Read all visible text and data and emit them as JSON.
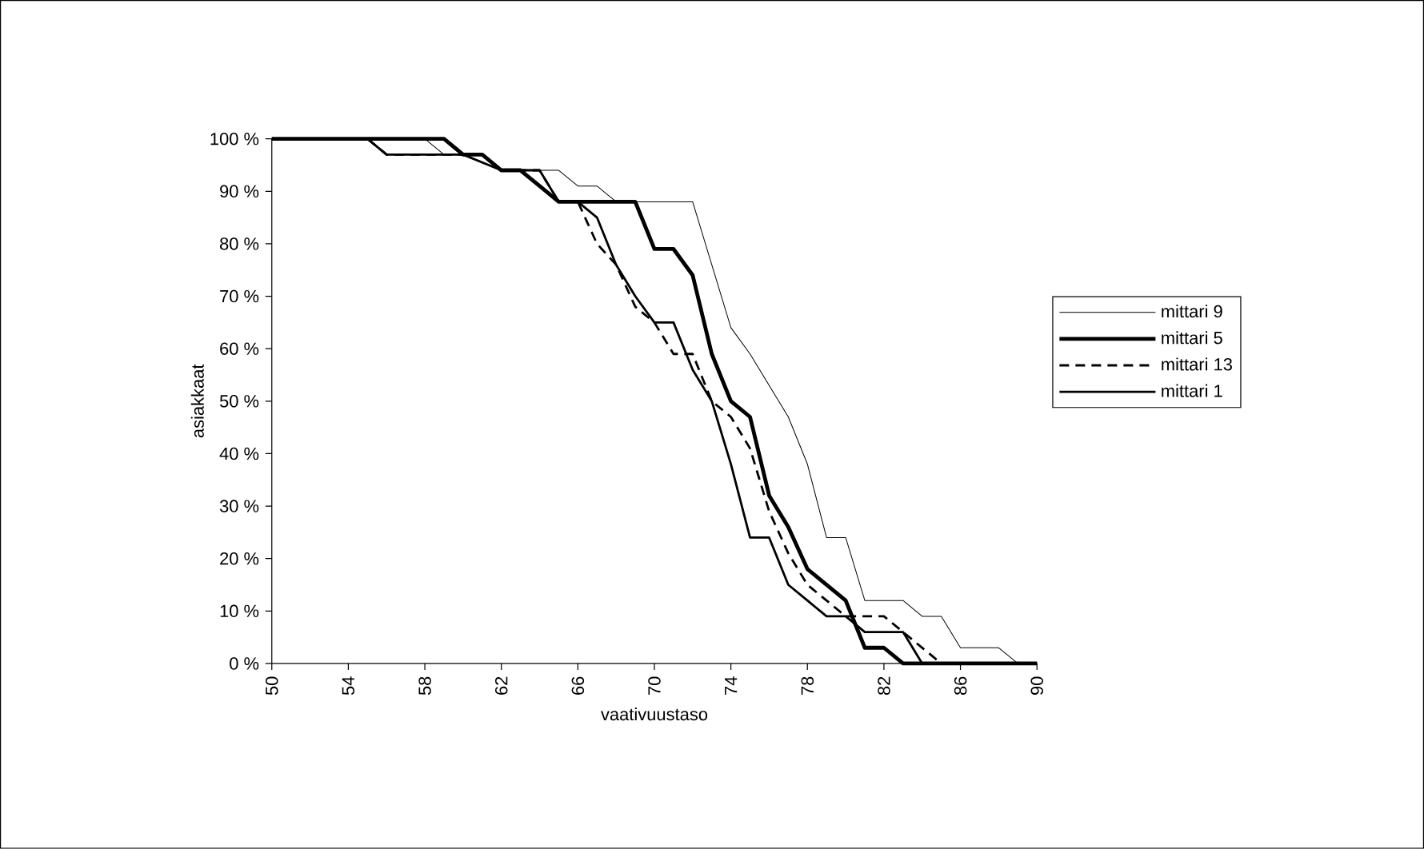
{
  "chart_data": {
    "type": "line",
    "xlabel": "vaativuustaso",
    "ylabel": "asiakkaat",
    "xlim": [
      50,
      90
    ],
    "xticks": [
      50,
      54,
      58,
      62,
      66,
      70,
      74,
      78,
      82,
      86,
      90
    ],
    "ylim": [
      0,
      100
    ],
    "yticks": [
      {
        "value": 0,
        "label": "0 %"
      },
      {
        "value": 10,
        "label": "10 %"
      },
      {
        "value": 20,
        "label": "20 %"
      },
      {
        "value": 30,
        "label": "30 %"
      },
      {
        "value": 40,
        "label": "40 %"
      },
      {
        "value": 50,
        "label": "50 %"
      },
      {
        "value": 60,
        "label": "60 %"
      },
      {
        "value": 70,
        "label": "70 %"
      },
      {
        "value": 80,
        "label": "80 %"
      },
      {
        "value": 90,
        "label": "90 %"
      },
      {
        "value": 100,
        "label": "100 %"
      }
    ],
    "grid": false,
    "legend": "right",
    "marker": "none",
    "series": [
      {
        "name": "mittari 9",
        "color": "#000000",
        "line_style": "solid",
        "x": [
          50,
          58,
          59,
          61,
          62,
          64,
          65,
          66,
          67,
          68,
          72,
          73,
          74,
          75,
          76,
          77,
          78,
          79,
          80,
          81,
          83,
          84,
          85,
          86,
          88,
          89,
          90
        ],
        "values": [
          100,
          100,
          97,
          97,
          94,
          94,
          94,
          91,
          91,
          88,
          88,
          76,
          64,
          59,
          53,
          47,
          38,
          24,
          24,
          12,
          12,
          9,
          9,
          3,
          3,
          0,
          0
        ]
      },
      {
        "name": "mittari 5",
        "color": "#000000",
        "line_style": "solid",
        "x": [
          50,
          59,
          60,
          61,
          62,
          63,
          64,
          65,
          69,
          70,
          71,
          72,
          73,
          74,
          75,
          76,
          77,
          78,
          79,
          80,
          81,
          82,
          83,
          90
        ],
        "values": [
          100,
          100,
          97,
          97,
          94,
          94,
          91,
          88,
          88,
          79,
          79,
          74,
          59,
          50,
          47,
          32,
          26,
          18,
          15,
          12,
          3,
          3,
          0,
          0
        ]
      },
      {
        "name": "mittari 13",
        "color": "#000000",
        "line_style": "dashed",
        "x": [
          50,
          55,
          56,
          61,
          62,
          64,
          65,
          66,
          67,
          68,
          69,
          70,
          71,
          72,
          73,
          74,
          75,
          76,
          77,
          78,
          79,
          80,
          82,
          83,
          84,
          85,
          90
        ],
        "values": [
          100,
          100,
          97,
          97,
          94,
          94,
          88,
          88,
          80,
          76,
          68,
          65,
          59,
          59,
          50,
          47,
          41,
          29,
          21,
          15,
          12,
          9,
          9,
          6,
          3,
          0,
          0
        ]
      },
      {
        "name": "mittari 1",
        "color": "#000000",
        "line_style": "solid",
        "x": [
          50,
          55,
          56,
          60,
          62,
          64,
          65,
          66,
          67,
          68,
          69,
          70,
          71,
          72,
          73,
          74,
          75,
          76,
          77,
          78,
          79,
          80,
          81,
          83,
          84,
          90
        ],
        "values": [
          100,
          100,
          97,
          97,
          94,
          94,
          88,
          88,
          85,
          76,
          70,
          65,
          65,
          56,
          50,
          38,
          24,
          24,
          15,
          12,
          9,
          9,
          6,
          6,
          0,
          0
        ]
      }
    ]
  }
}
